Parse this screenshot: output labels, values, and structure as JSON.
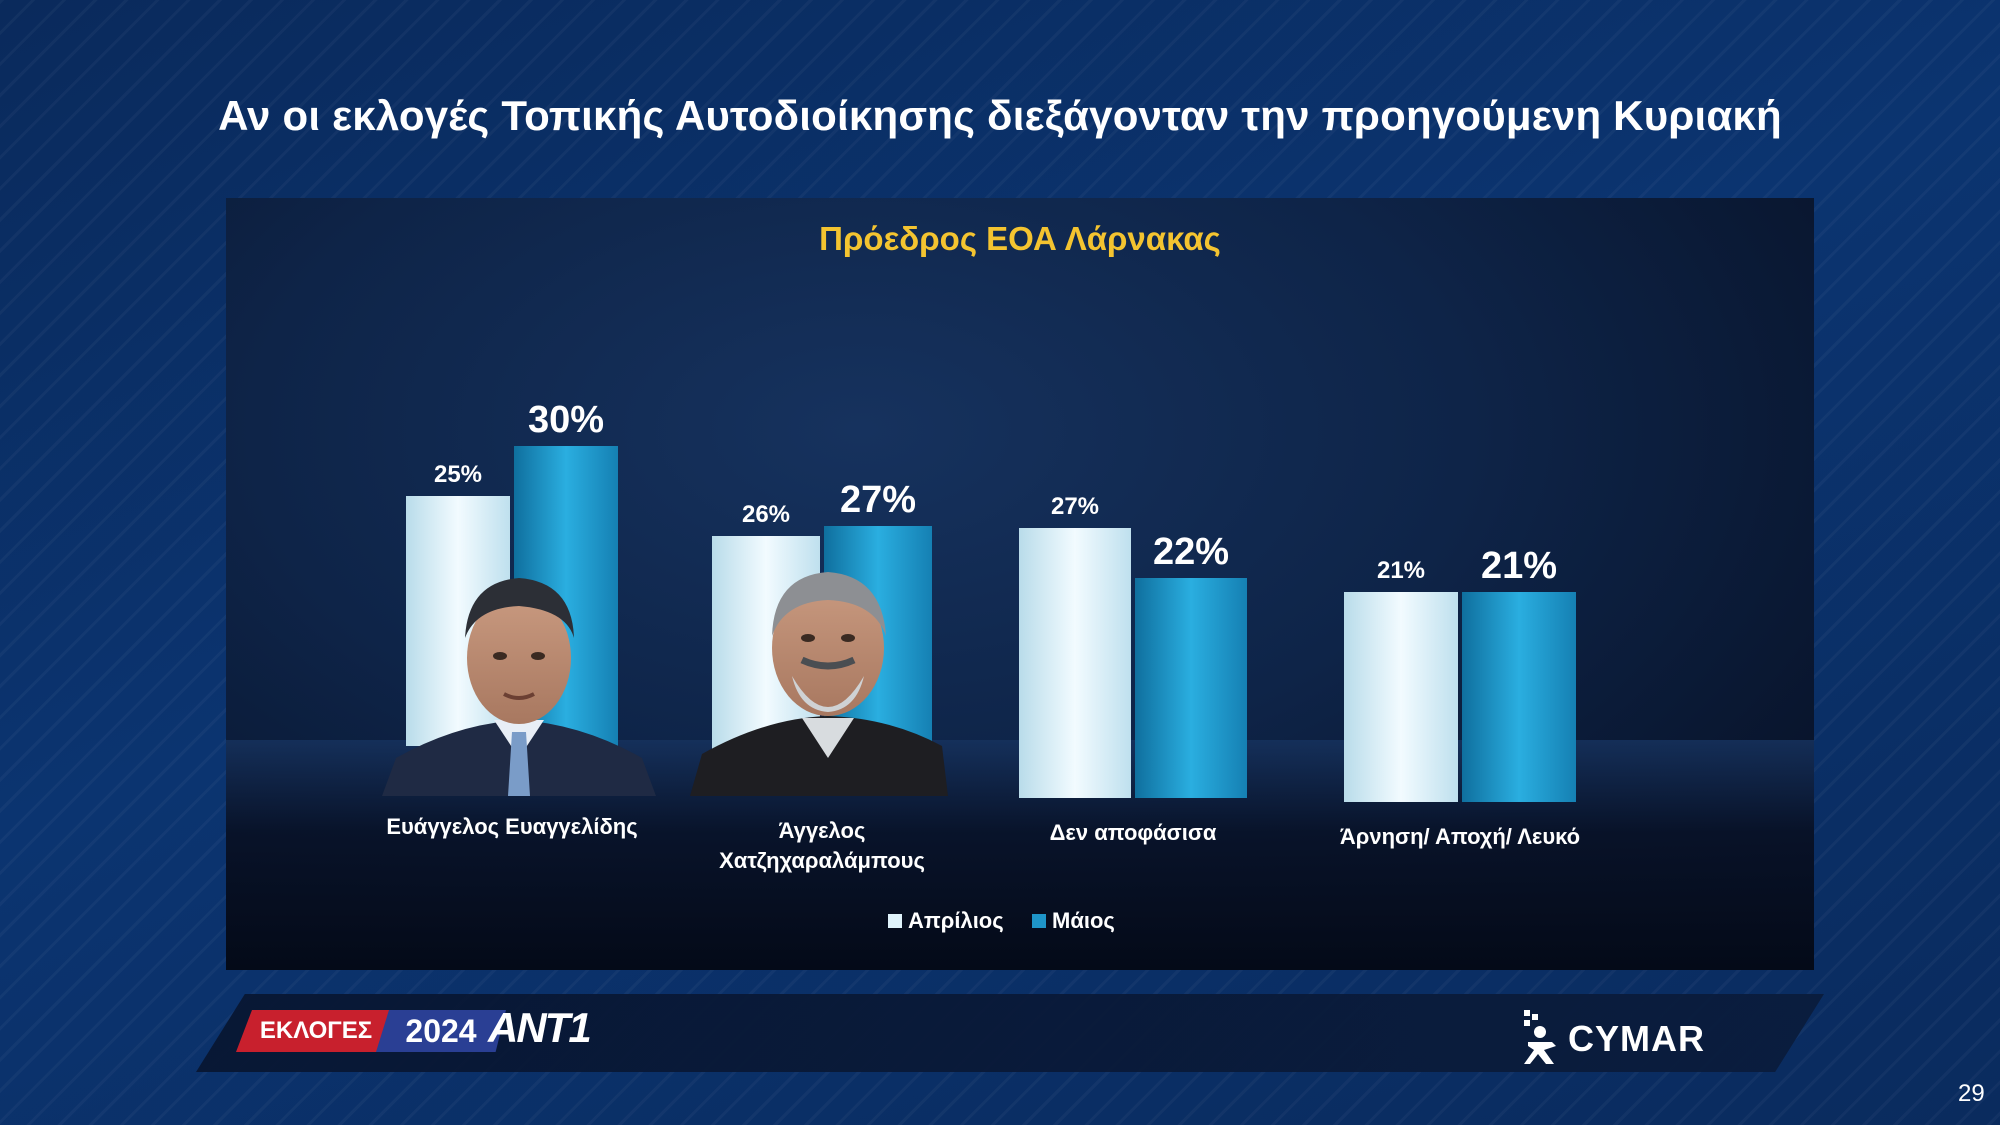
{
  "title": "Αν οι εκλογές Τοπικής Αυτοδιοίκησης διεξάγονταν την προηγούμενη Κυριακή",
  "page_number": "29",
  "footer": {
    "left_tag": "ΕΚΛΟΓΕΣ",
    "year": "2024",
    "channel": "ANT1",
    "pollster": "CYMAR"
  },
  "colors": {
    "april": "#dff3fb",
    "may": "#1e95c8",
    "subtitle": "#f4c430"
  },
  "chart_data": {
    "type": "bar",
    "title": "Πρόεδρος ΕΟΑ Λάρνακας",
    "categories": [
      "Ευάγγελος Ευαγγελίδης",
      "Άγγελος Χατζηχαραλάμπους",
      "Δεν αποφάσισα",
      "Άρνηση/ Αποχή/ Λευκό"
    ],
    "series": [
      {
        "name": "Απρίλιος",
        "values": [
          25,
          26,
          27,
          21
        ],
        "labels": [
          "25%",
          "26%",
          "27%",
          "21%"
        ]
      },
      {
        "name": "Μάιος",
        "values": [
          30,
          27,
          22,
          21
        ],
        "labels": [
          "30%",
          "27%",
          "22%",
          "21%"
        ]
      }
    ],
    "ylim": [
      0,
      30
    ],
    "grid": false,
    "legend": "bottom-center",
    "photos": [
      "candidate-photo-evangelides",
      "candidate-photo-chatzicharalambous"
    ]
  }
}
